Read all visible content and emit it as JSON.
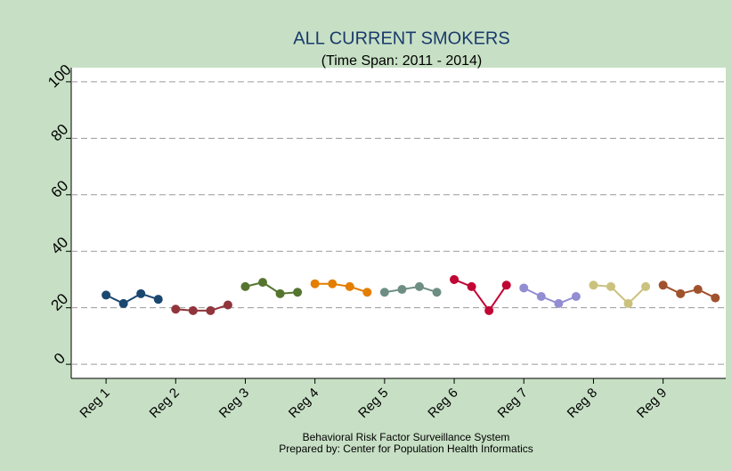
{
  "chart_data": {
    "type": "line",
    "title": "ALL CURRENT SMOKERS",
    "subtitle": "(Time Span: 2011 - 2014)",
    "notes": [
      "Behavioral Risk Factor Surveillance System",
      "Prepared by: Center for Population Health Informatics"
    ],
    "xlim": [
      0.5,
      9.9
    ],
    "xticks": [
      {
        "value": 1,
        "label": "Reg 1"
      },
      {
        "value": 2,
        "label": "Reg 2"
      },
      {
        "value": 3,
        "label": "Reg 3"
      },
      {
        "value": 4,
        "label": "Reg 4"
      },
      {
        "value": 5,
        "label": "Reg 5"
      },
      {
        "value": 6,
        "label": "Reg 6"
      },
      {
        "value": 7,
        "label": "Reg 7"
      },
      {
        "value": 8,
        "label": "Reg 8"
      },
      {
        "value": 9,
        "label": "Reg 9"
      }
    ],
    "ylim": [
      -5,
      105
    ],
    "yticks": [
      0,
      20,
      40,
      60,
      80,
      100
    ],
    "grid": true,
    "series": [
      {
        "color": "#1a476f",
        "x": [
          1,
          1.25,
          1.5,
          1.75
        ],
        "values": [
          24.5,
          21.5,
          25,
          23
        ]
      },
      {
        "color": "#90353b",
        "x": [
          2,
          2.25,
          2.5,
          2.75
        ],
        "values": [
          19.5,
          19,
          19,
          21
        ]
      },
      {
        "color": "#55752f",
        "x": [
          3,
          3.25,
          3.5,
          3.75
        ],
        "values": [
          27.5,
          29,
          25,
          25.5
        ]
      },
      {
        "color": "#e37e00",
        "x": [
          4,
          4.25,
          4.5,
          4.75
        ],
        "values": [
          28.5,
          28.5,
          27.5,
          25.5
        ]
      },
      {
        "color": "#6e8e84",
        "x": [
          5,
          5.25,
          5.5,
          5.75
        ],
        "values": [
          25.5,
          26.5,
          27.5,
          25.5
        ]
      },
      {
        "color": "#c10534",
        "x": [
          6,
          6.25,
          6.5,
          6.75
        ],
        "values": [
          30,
          27.5,
          19,
          28
        ]
      },
      {
        "color": "#938dd2",
        "x": [
          7,
          7.25,
          7.5,
          7.75
        ],
        "values": [
          27,
          24,
          21.5,
          24
        ]
      },
      {
        "color": "#cac27e",
        "x": [
          8,
          8.25,
          8.5,
          8.75
        ],
        "values": [
          28,
          27.5,
          21.5,
          27.5
        ]
      },
      {
        "color": "#a0522d",
        "x": [
          9,
          9.25,
          9.5,
          9.75
        ],
        "values": [
          28,
          25,
          26.5,
          23.5
        ]
      }
    ]
  }
}
